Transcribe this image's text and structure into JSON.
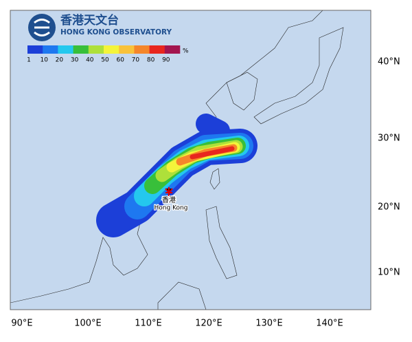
{
  "logo": {
    "chinese": "香港天文台",
    "english": "HONG KONG OBSERVATORY"
  },
  "legend": {
    "unit": "%",
    "labels": [
      "1",
      "10",
      "20",
      "30",
      "40",
      "50",
      "60",
      "70",
      "80",
      "90"
    ],
    "colors": [
      "#1c3fd8",
      "#1e78f0",
      "#24c8ee",
      "#38bf3a",
      "#aee03a",
      "#f4f43a",
      "#f9c23a",
      "#f5862a",
      "#e8261e",
      "#a3154f"
    ]
  },
  "lon_labels": [
    "90°E",
    "100°E",
    "110°E",
    "120°E",
    "130°E",
    "140°E"
  ],
  "lat_labels": [
    "40°N",
    "30°N",
    "20°N",
    "10°N"
  ],
  "place": {
    "chinese": "香港",
    "english": "Hong Kong"
  }
}
